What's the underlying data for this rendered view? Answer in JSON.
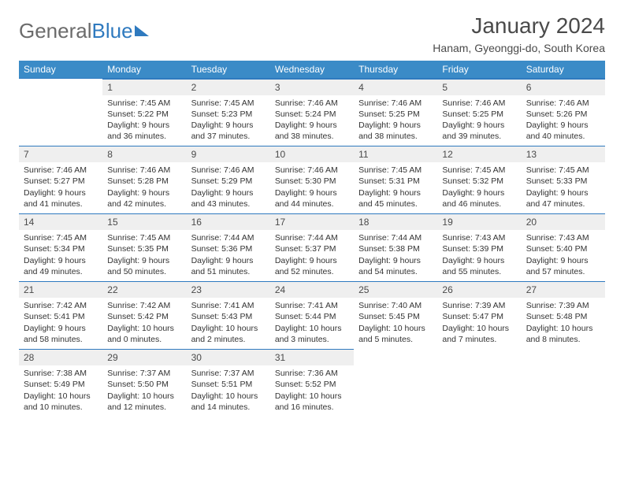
{
  "logo": {
    "part1": "General",
    "part2": "Blue"
  },
  "title": "January 2024",
  "subtitle": "Hanam, Gyeonggi-do, South Korea",
  "weekdays": [
    "Sunday",
    "Monday",
    "Tuesday",
    "Wednesday",
    "Thursday",
    "Friday",
    "Saturday"
  ],
  "colors": {
    "header_bg": "#3b8bc7",
    "header_border": "#2f7abf",
    "daynum_bg": "#efefef",
    "text": "#333333",
    "title": "#4a4a4a"
  },
  "grid": [
    [
      null,
      {
        "n": "1",
        "sr": "Sunrise: 7:45 AM",
        "ss": "Sunset: 5:22 PM",
        "dl1": "Daylight: 9 hours",
        "dl2": "and 36 minutes."
      },
      {
        "n": "2",
        "sr": "Sunrise: 7:45 AM",
        "ss": "Sunset: 5:23 PM",
        "dl1": "Daylight: 9 hours",
        "dl2": "and 37 minutes."
      },
      {
        "n": "3",
        "sr": "Sunrise: 7:46 AM",
        "ss": "Sunset: 5:24 PM",
        "dl1": "Daylight: 9 hours",
        "dl2": "and 38 minutes."
      },
      {
        "n": "4",
        "sr": "Sunrise: 7:46 AM",
        "ss": "Sunset: 5:25 PM",
        "dl1": "Daylight: 9 hours",
        "dl2": "and 38 minutes."
      },
      {
        "n": "5",
        "sr": "Sunrise: 7:46 AM",
        "ss": "Sunset: 5:25 PM",
        "dl1": "Daylight: 9 hours",
        "dl2": "and 39 minutes."
      },
      {
        "n": "6",
        "sr": "Sunrise: 7:46 AM",
        "ss": "Sunset: 5:26 PM",
        "dl1": "Daylight: 9 hours",
        "dl2": "and 40 minutes."
      }
    ],
    [
      {
        "n": "7",
        "sr": "Sunrise: 7:46 AM",
        "ss": "Sunset: 5:27 PM",
        "dl1": "Daylight: 9 hours",
        "dl2": "and 41 minutes."
      },
      {
        "n": "8",
        "sr": "Sunrise: 7:46 AM",
        "ss": "Sunset: 5:28 PM",
        "dl1": "Daylight: 9 hours",
        "dl2": "and 42 minutes."
      },
      {
        "n": "9",
        "sr": "Sunrise: 7:46 AM",
        "ss": "Sunset: 5:29 PM",
        "dl1": "Daylight: 9 hours",
        "dl2": "and 43 minutes."
      },
      {
        "n": "10",
        "sr": "Sunrise: 7:46 AM",
        "ss": "Sunset: 5:30 PM",
        "dl1": "Daylight: 9 hours",
        "dl2": "and 44 minutes."
      },
      {
        "n": "11",
        "sr": "Sunrise: 7:45 AM",
        "ss": "Sunset: 5:31 PM",
        "dl1": "Daylight: 9 hours",
        "dl2": "and 45 minutes."
      },
      {
        "n": "12",
        "sr": "Sunrise: 7:45 AM",
        "ss": "Sunset: 5:32 PM",
        "dl1": "Daylight: 9 hours",
        "dl2": "and 46 minutes."
      },
      {
        "n": "13",
        "sr": "Sunrise: 7:45 AM",
        "ss": "Sunset: 5:33 PM",
        "dl1": "Daylight: 9 hours",
        "dl2": "and 47 minutes."
      }
    ],
    [
      {
        "n": "14",
        "sr": "Sunrise: 7:45 AM",
        "ss": "Sunset: 5:34 PM",
        "dl1": "Daylight: 9 hours",
        "dl2": "and 49 minutes."
      },
      {
        "n": "15",
        "sr": "Sunrise: 7:45 AM",
        "ss": "Sunset: 5:35 PM",
        "dl1": "Daylight: 9 hours",
        "dl2": "and 50 minutes."
      },
      {
        "n": "16",
        "sr": "Sunrise: 7:44 AM",
        "ss": "Sunset: 5:36 PM",
        "dl1": "Daylight: 9 hours",
        "dl2": "and 51 minutes."
      },
      {
        "n": "17",
        "sr": "Sunrise: 7:44 AM",
        "ss": "Sunset: 5:37 PM",
        "dl1": "Daylight: 9 hours",
        "dl2": "and 52 minutes."
      },
      {
        "n": "18",
        "sr": "Sunrise: 7:44 AM",
        "ss": "Sunset: 5:38 PM",
        "dl1": "Daylight: 9 hours",
        "dl2": "and 54 minutes."
      },
      {
        "n": "19",
        "sr": "Sunrise: 7:43 AM",
        "ss": "Sunset: 5:39 PM",
        "dl1": "Daylight: 9 hours",
        "dl2": "and 55 minutes."
      },
      {
        "n": "20",
        "sr": "Sunrise: 7:43 AM",
        "ss": "Sunset: 5:40 PM",
        "dl1": "Daylight: 9 hours",
        "dl2": "and 57 minutes."
      }
    ],
    [
      {
        "n": "21",
        "sr": "Sunrise: 7:42 AM",
        "ss": "Sunset: 5:41 PM",
        "dl1": "Daylight: 9 hours",
        "dl2": "and 58 minutes."
      },
      {
        "n": "22",
        "sr": "Sunrise: 7:42 AM",
        "ss": "Sunset: 5:42 PM",
        "dl1": "Daylight: 10 hours",
        "dl2": "and 0 minutes."
      },
      {
        "n": "23",
        "sr": "Sunrise: 7:41 AM",
        "ss": "Sunset: 5:43 PM",
        "dl1": "Daylight: 10 hours",
        "dl2": "and 2 minutes."
      },
      {
        "n": "24",
        "sr": "Sunrise: 7:41 AM",
        "ss": "Sunset: 5:44 PM",
        "dl1": "Daylight: 10 hours",
        "dl2": "and 3 minutes."
      },
      {
        "n": "25",
        "sr": "Sunrise: 7:40 AM",
        "ss": "Sunset: 5:45 PM",
        "dl1": "Daylight: 10 hours",
        "dl2": "and 5 minutes."
      },
      {
        "n": "26",
        "sr": "Sunrise: 7:39 AM",
        "ss": "Sunset: 5:47 PM",
        "dl1": "Daylight: 10 hours",
        "dl2": "and 7 minutes."
      },
      {
        "n": "27",
        "sr": "Sunrise: 7:39 AM",
        "ss": "Sunset: 5:48 PM",
        "dl1": "Daylight: 10 hours",
        "dl2": "and 8 minutes."
      }
    ],
    [
      {
        "n": "28",
        "sr": "Sunrise: 7:38 AM",
        "ss": "Sunset: 5:49 PM",
        "dl1": "Daylight: 10 hours",
        "dl2": "and 10 minutes."
      },
      {
        "n": "29",
        "sr": "Sunrise: 7:37 AM",
        "ss": "Sunset: 5:50 PM",
        "dl1": "Daylight: 10 hours",
        "dl2": "and 12 minutes."
      },
      {
        "n": "30",
        "sr": "Sunrise: 7:37 AM",
        "ss": "Sunset: 5:51 PM",
        "dl1": "Daylight: 10 hours",
        "dl2": "and 14 minutes."
      },
      {
        "n": "31",
        "sr": "Sunrise: 7:36 AM",
        "ss": "Sunset: 5:52 PM",
        "dl1": "Daylight: 10 hours",
        "dl2": "and 16 minutes."
      },
      null,
      null,
      null
    ]
  ]
}
